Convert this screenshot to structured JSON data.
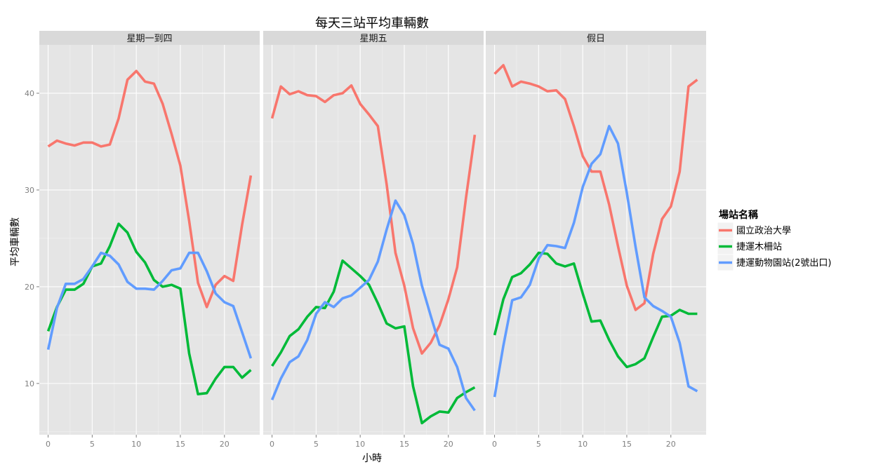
{
  "chart_data": {
    "type": "line",
    "title": "每天三站平均車輛數",
    "xlabel": "小時",
    "ylabel": "平均車輛數",
    "xlim": [
      -1,
      24
    ],
    "ylim": [
      4.7,
      45
    ],
    "x_ticks": [
      0,
      5,
      10,
      15,
      20
    ],
    "y_ticks": [
      10,
      20,
      30,
      40
    ],
    "grid": true,
    "legend_position": "right",
    "legend_title": "場站名稱",
    "panels": [
      "星期一到四",
      "星期五",
      "假日"
    ],
    "x": [
      0,
      1,
      2,
      3,
      4,
      5,
      6,
      7,
      8,
      9,
      10,
      11,
      12,
      13,
      14,
      15,
      16,
      17,
      18,
      19,
      20,
      21,
      22,
      23
    ],
    "series": [
      {
        "name": "國立政治大學",
        "color": "#F8766D",
        "values": [
          [
            34.5,
            35.1,
            34.8,
            34.6,
            34.9,
            34.9,
            34.5,
            34.7,
            37.4,
            41.4,
            42.3,
            41.2,
            41.0,
            38.9,
            35.8,
            32.5,
            26.8,
            20.4,
            17.9,
            20.2,
            21.1,
            20.6,
            26.4,
            31.5
          ],
          [
            37.4,
            40.7,
            39.9,
            40.2,
            39.8,
            39.7,
            39.1,
            39.8,
            40.0,
            40.8,
            38.9,
            37.8,
            36.6,
            30.6,
            23.5,
            20.1,
            15.7,
            13.1,
            14.2,
            16.0,
            18.7,
            22.0,
            29.2,
            35.7
          ],
          [
            42.0,
            42.9,
            40.7,
            41.2,
            41.0,
            40.7,
            40.2,
            40.3,
            39.4,
            36.6,
            33.5,
            31.9,
            31.9,
            28.5,
            24.2,
            20.1,
            17.6,
            18.3,
            23.4,
            27.0,
            28.3,
            31.9,
            40.7,
            41.4
          ]
        ]
      },
      {
        "name": "捷運木柵站",
        "color": "#00BA38",
        "values": [
          [
            15.4,
            17.9,
            19.7,
            19.7,
            20.3,
            22.1,
            22.4,
            24.2,
            26.5,
            25.6,
            23.6,
            22.5,
            20.7,
            20.0,
            20.2,
            19.8,
            13.1,
            8.9,
            9.0,
            10.5,
            11.7,
            11.7,
            10.6,
            11.4
          ],
          [
            11.8,
            13.2,
            14.9,
            15.6,
            16.9,
            17.9,
            17.8,
            19.5,
            22.7,
            21.9,
            21.1,
            20.2,
            18.3,
            16.2,
            15.7,
            15.9,
            9.7,
            5.9,
            6.6,
            7.1,
            7.0,
            8.5,
            9.1,
            9.6
          ],
          [
            15.0,
            18.7,
            21.0,
            21.4,
            22.3,
            23.5,
            23.4,
            22.4,
            22.1,
            22.4,
            19.3,
            16.4,
            16.5,
            14.5,
            12.8,
            11.7,
            12.0,
            12.6,
            14.8,
            16.9,
            17.0,
            17.6,
            17.2,
            17.2
          ]
        ]
      },
      {
        "name": "捷運動物園站(2號出口)",
        "color": "#619CFF",
        "values": [
          [
            13.5,
            17.8,
            20.3,
            20.3,
            20.8,
            22.1,
            23.5,
            23.2,
            22.3,
            20.5,
            19.8,
            19.8,
            19.7,
            20.6,
            21.7,
            21.9,
            23.5,
            23.5,
            21.6,
            19.3,
            18.4,
            18.0,
            15.3,
            12.6
          ],
          [
            8.3,
            10.5,
            12.2,
            12.8,
            14.5,
            17.2,
            18.4,
            17.9,
            18.8,
            19.1,
            19.9,
            20.7,
            22.6,
            25.9,
            28.9,
            27.4,
            24.4,
            20.1,
            17.0,
            14.0,
            13.6,
            11.7,
            8.5,
            7.2
          ],
          [
            8.6,
            13.9,
            18.6,
            18.9,
            20.2,
            22.9,
            24.3,
            24.2,
            24.0,
            26.6,
            30.3,
            32.7,
            33.7,
            36.6,
            34.8,
            29.7,
            24.1,
            18.9,
            18.0,
            17.5,
            16.9,
            14.2,
            9.7,
            9.2
          ]
        ]
      }
    ]
  }
}
